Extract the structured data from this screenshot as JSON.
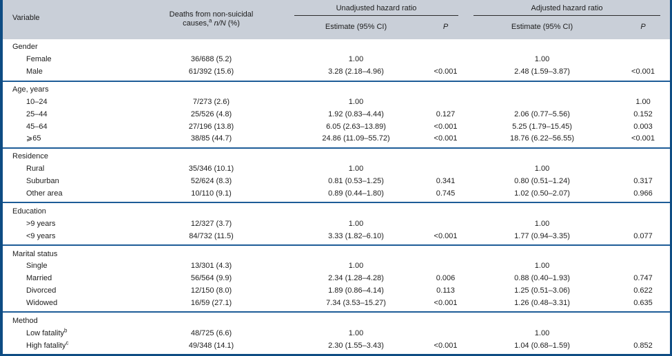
{
  "palette": {
    "outer_border_blue": "#0e4c83",
    "section_divider_blue": "#1d5c97",
    "header_background_gray": "#c9cfd8",
    "body_background": "#ffffff",
    "text_color": "#1c1c1c"
  },
  "header": {
    "variable": "Variable",
    "deaths_line1": "Deaths from non-suicidal",
    "deaths_line2": {
      "pre": "causes,",
      "sup": "a",
      "mid_italic": "n/N",
      "post": "(%)"
    },
    "unadjusted_group": "Unadjusted hazard ratio",
    "adjusted_group": "Adjusted hazard ratio",
    "estimate_label": "Estimate (95% CI)",
    "p_label": "P"
  },
  "sections": [
    {
      "title": "Gender",
      "rows": [
        {
          "label": "Female",
          "sup": "",
          "deaths": "36/688 (5.2)",
          "u_est": "1.00",
          "u_p": "",
          "a_est": "1.00",
          "a_p": ""
        },
        {
          "label": "Male",
          "sup": "",
          "deaths": "61/392 (15.6)",
          "u_est": "3.28 (2.18–4.96)",
          "u_p": "<0.001",
          "a_est": "2.48 (1.59–3.87)",
          "a_p": "<0.001"
        }
      ]
    },
    {
      "title": "Age, years",
      "rows": [
        {
          "label": "10–24",
          "sup": "",
          "deaths": "7/273 (2.6)",
          "u_est": "1.00",
          "u_p": "",
          "a_est": "",
          "a_p": "1.00"
        },
        {
          "label": "25–44",
          "sup": "",
          "deaths": "25/526 (4.8)",
          "u_est": "1.92 (0.83–4.44)",
          "u_p": "0.127",
          "a_est": "2.06 (0.77–5.56)",
          "a_p": "0.152"
        },
        {
          "label": "45–64",
          "sup": "",
          "deaths": "27/196 (13.8)",
          "u_est": "6.05 (2.63–13.89)",
          "u_p": "<0.001",
          "a_est": "5.25 (1.79–15.45)",
          "a_p": "0.003"
        },
        {
          "label": "⩾65",
          "sup": "",
          "deaths": "38/85 (44.7)",
          "u_est": "24.86 (11.09–55.72)",
          "u_p": "<0.001",
          "a_est": "18.76 (6.22–56.55)",
          "a_p": "<0.001"
        }
      ]
    },
    {
      "title": "Residence",
      "rows": [
        {
          "label": "Rural",
          "sup": "",
          "deaths": "35/346 (10.1)",
          "u_est": "1.00",
          "u_p": "",
          "a_est": "1.00",
          "a_p": ""
        },
        {
          "label": "Suburban",
          "sup": "",
          "deaths": "52/624 (8.3)",
          "u_est": "0.81 (0.53–1.25)",
          "u_p": "0.341",
          "a_est": "0.80 (0.51–1.24)",
          "a_p": "0.317"
        },
        {
          "label": "Other area",
          "sup": "",
          "deaths": "10/110 (9.1)",
          "u_est": "0.89 (0.44–1.80)",
          "u_p": "0.745",
          "a_est": "1.02 (0.50–2.07)",
          "a_p": "0.966"
        }
      ]
    },
    {
      "title": "Education",
      "rows": [
        {
          "label": ">9 years",
          "sup": "",
          "deaths": "12/327 (3.7)",
          "u_est": "1.00",
          "u_p": "",
          "a_est": "1.00",
          "a_p": ""
        },
        {
          "label": "<9 years",
          "sup": "",
          "deaths": "84/732 (11.5)",
          "u_est": "3.33 (1.82–6.10)",
          "u_p": "<0.001",
          "a_est": "1.77 (0.94–3.35)",
          "a_p": "0.077"
        }
      ]
    },
    {
      "title": "Marital status",
      "rows": [
        {
          "label": "Single",
          "sup": "",
          "deaths": "13/301 (4.3)",
          "u_est": "1.00",
          "u_p": "",
          "a_est": "1.00",
          "a_p": ""
        },
        {
          "label": "Married",
          "sup": "",
          "deaths": "56/564 (9.9)",
          "u_est": "2.34 (1.28–4.28)",
          "u_p": "0.006",
          "a_est": "0.88 (0.40–1.93)",
          "a_p": "0.747"
        },
        {
          "label": "Divorced",
          "sup": "",
          "deaths": "12/150 (8.0)",
          "u_est": "1.89 (0.86–4.14)",
          "u_p": "0.113",
          "a_est": "1.25 (0.51–3.06)",
          "a_p": "0.622"
        },
        {
          "label": "Widowed",
          "sup": "",
          "deaths": "16/59 (27.1)",
          "u_est": "7.34 (3.53–15.27)",
          "u_p": "<0.001",
          "a_est": "1.26 (0.48–3.31)",
          "a_p": "0.635"
        }
      ]
    },
    {
      "title": "Method",
      "rows": [
        {
          "label": "Low fatality",
          "sup": "b",
          "deaths": "48/725 (6.6)",
          "u_est": "1.00",
          "u_p": "",
          "a_est": "1.00",
          "a_p": ""
        },
        {
          "label": "High fatality",
          "sup": "c",
          "deaths": "49/348 (14.1)",
          "u_est": "2.30 (1.55–3.43)",
          "u_p": "<0.001",
          "a_est": "1.04 (0.68–1.59)",
          "a_p": "0.852"
        }
      ]
    }
  ]
}
